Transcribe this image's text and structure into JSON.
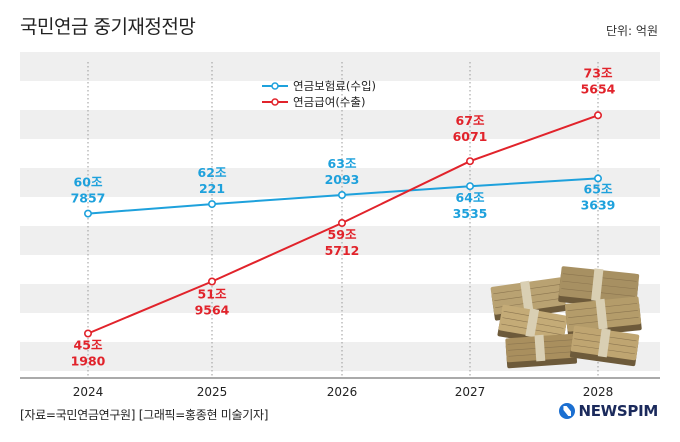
{
  "title": "국민연금 중기재정전망",
  "unit_label": "단위: 억원",
  "source": "[자료=국민연금연구원] [그래픽=홍종현 미술기자]",
  "logo_text": "NEWSPIM",
  "chart_data": {
    "type": "line",
    "title": "국민연금 중기재정전망",
    "categories": [
      "2024",
      "2025",
      "2026",
      "2027",
      "2028"
    ],
    "series": [
      {
        "name": "연금보험료(수입)",
        "color": "#1ea1dc",
        "values": [
          607857,
          620221,
          632093,
          643535,
          653639
        ],
        "labels": [
          [
            "60조",
            "7857"
          ],
          [
            "62조",
            "221"
          ],
          [
            "63조",
            "2093"
          ],
          [
            "64조",
            "3535"
          ],
          [
            "65조",
            "3639"
          ]
        ]
      },
      {
        "name": "연금급여(수출)",
        "color": "#e1232b",
        "values": [
          451980,
          519564,
          595712,
          676071,
          735654
        ],
        "labels": [
          [
            "45조",
            "1980"
          ],
          [
            "51조",
            "9564"
          ],
          [
            "59조",
            "5712"
          ],
          [
            "67조",
            "6071"
          ],
          [
            "73조",
            "5654"
          ]
        ]
      }
    ],
    "grid": "horizontal bands",
    "legend_position": "top-left"
  }
}
